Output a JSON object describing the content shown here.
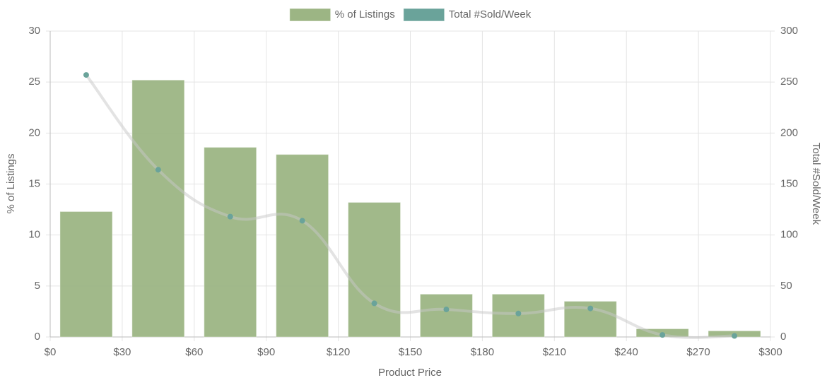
{
  "chart_data": {
    "type": "bar",
    "x": [
      15,
      45,
      75,
      105,
      135,
      165,
      195,
      225,
      255,
      285
    ],
    "xlim": [
      0,
      300
    ],
    "xticks": [
      {
        "value": 0,
        "label": "$0"
      },
      {
        "value": 30,
        "label": "$30"
      },
      {
        "value": 60,
        "label": "$60"
      },
      {
        "value": 90,
        "label": "$90"
      },
      {
        "value": 120,
        "label": "$120"
      },
      {
        "value": 150,
        "label": "$150"
      },
      {
        "value": 180,
        "label": "$180"
      },
      {
        "value": 210,
        "label": "$210"
      },
      {
        "value": 240,
        "label": "$240"
      },
      {
        "value": 270,
        "label": "$270"
      },
      {
        "value": 300,
        "label": "$300"
      }
    ],
    "ylim": [
      0,
      30
    ],
    "yticks": [
      0,
      5,
      10,
      15,
      20,
      25,
      30
    ],
    "y2lim": [
      0,
      300
    ],
    "y2ticks": [
      0,
      50,
      100,
      150,
      200,
      250,
      300
    ],
    "x_label": "Product Price",
    "y_label": "% of Listings",
    "y2_label": "Total #Sold/Week",
    "grid": true,
    "legend": "top",
    "series": [
      {
        "name": "% of Listings",
        "type": "bar",
        "color": "#9cb584",
        "values": [
          12.3,
          25.2,
          18.6,
          17.9,
          13.2,
          4.2,
          4.2,
          3.5,
          0.8,
          0.6
        ]
      },
      {
        "name": "Total #Sold/Week",
        "type": "line",
        "axis": "y2",
        "color": "#6aa39a",
        "values": [
          257,
          164,
          118,
          114,
          33,
          27,
          23,
          28,
          2,
          1
        ]
      }
    ]
  }
}
